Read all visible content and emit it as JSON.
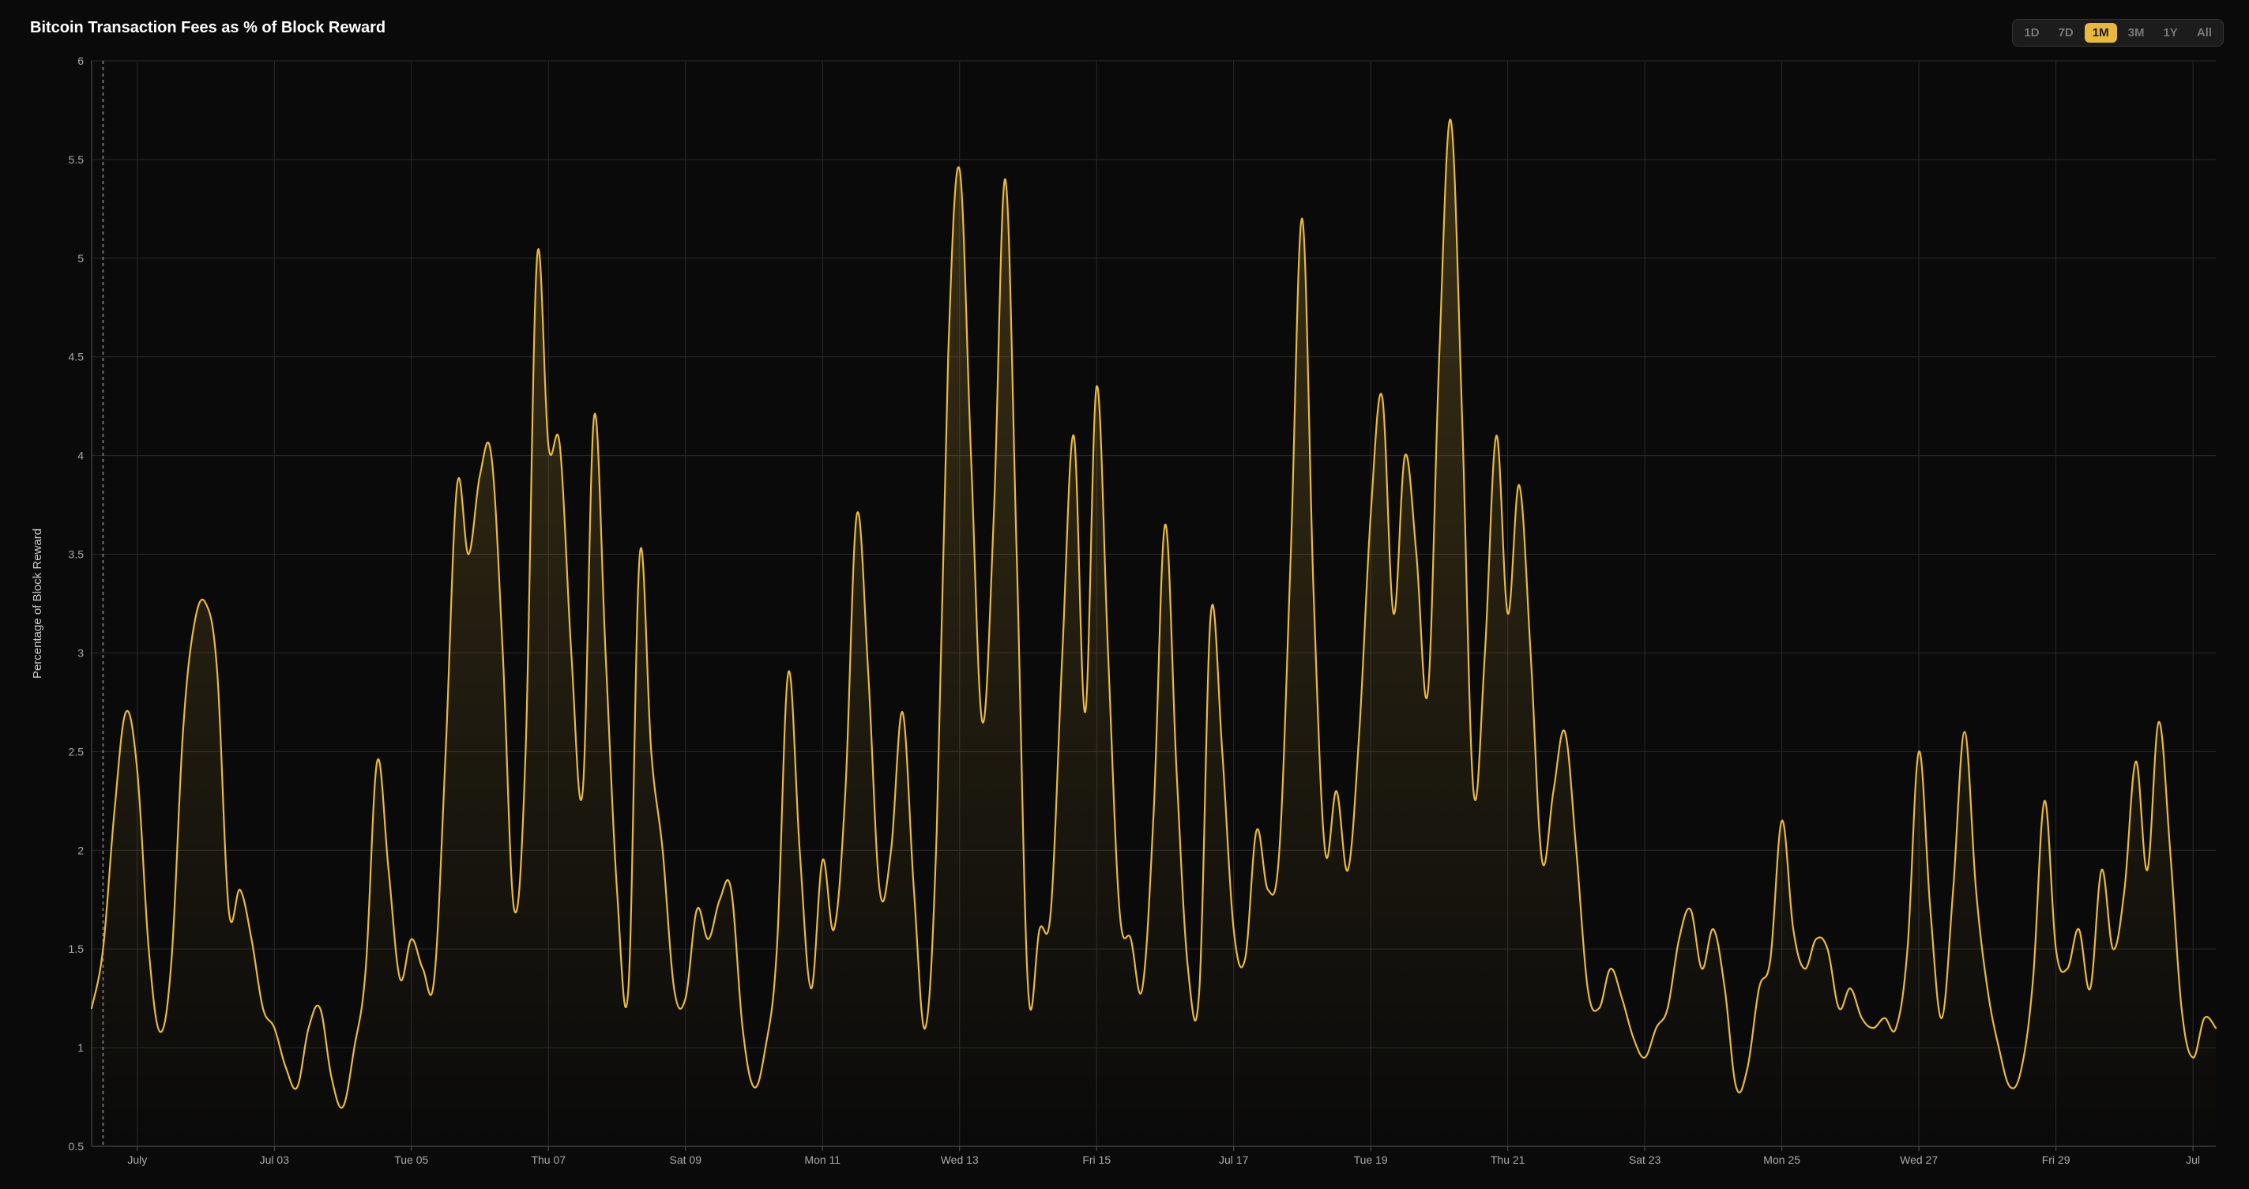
{
  "title": "Bitcoin Transaction Fees as % of Block Reward",
  "range_selector": {
    "options": [
      "1D",
      "7D",
      "1M",
      "3M",
      "1Y",
      "All"
    ],
    "selected": "1M"
  },
  "chart": {
    "type": "area",
    "background_color": "#0a0a0a",
    "grid_color": "#2a2a2a",
    "axis_color": "#555555",
    "line_color": "#e8b93f",
    "line_width": 2.2,
    "fill_top_color": "#e8b93f",
    "fill_top_opacity": 0.22,
    "fill_bottom_opacity": 0.0,
    "ylabel": "Percentage of Block Reward",
    "ylabel_fontsize": 15,
    "tick_fontsize": 14,
    "tick_color": "#aaaaaa",
    "ylim": [
      0.5,
      6
    ],
    "ytick_step": 0.5,
    "x_index_range": [
      0,
      186
    ],
    "x_ticks": [
      {
        "idx": 4,
        "label": "July"
      },
      {
        "idx": 16,
        "label": "Jul 03"
      },
      {
        "idx": 28,
        "label": "Tue 05"
      },
      {
        "idx": 40,
        "label": "Thu 07"
      },
      {
        "idx": 52,
        "label": "Sat 09"
      },
      {
        "idx": 64,
        "label": "Mon 11"
      },
      {
        "idx": 76,
        "label": "Wed 13"
      },
      {
        "idx": 88,
        "label": "Fri 15"
      },
      {
        "idx": 100,
        "label": "Jul 17"
      },
      {
        "idx": 112,
        "label": "Tue 19"
      },
      {
        "idx": 124,
        "label": "Thu 21"
      },
      {
        "idx": 136,
        "label": "Sat 23"
      },
      {
        "idx": 148,
        "label": "Mon 25"
      },
      {
        "idx": 160,
        "label": "Wed 27"
      },
      {
        "idx": 172,
        "label": "Fri 29"
      },
      {
        "idx": 184,
        "label": "Jul"
      }
    ],
    "dashed_marker_idx": 1,
    "values": [
      1.2,
      1.5,
      2.2,
      2.7,
      2.4,
      1.5,
      1.08,
      1.45,
      2.6,
      3.15,
      3.25,
      2.9,
      1.7,
      1.8,
      1.55,
      1.2,
      1.1,
      0.9,
      0.8,
      1.1,
      1.2,
      0.85,
      0.7,
      1.0,
      1.4,
      2.45,
      1.9,
      1.35,
      1.55,
      1.4,
      1.35,
      2.5,
      3.85,
      3.5,
      3.9,
      4.0,
      3.0,
      1.7,
      2.5,
      5.0,
      4.05,
      4.05,
      3.0,
      2.3,
      4.2,
      3.0,
      1.8,
      1.3,
      3.5,
      2.5,
      2.0,
      1.3,
      1.25,
      1.7,
      1.55,
      1.75,
      1.8,
      1.1,
      0.8,
      1.0,
      1.5,
      2.9,
      2.0,
      1.3,
      1.95,
      1.6,
      2.3,
      3.7,
      2.9,
      1.8,
      2.0,
      2.7,
      1.8,
      1.1,
      2.1,
      4.5,
      5.45,
      4.0,
      2.65,
      3.7,
      5.4,
      3.5,
      1.3,
      1.6,
      1.7,
      3.0,
      4.1,
      2.7,
      4.35,
      3.0,
      1.7,
      1.55,
      1.3,
      2.2,
      3.65,
      2.4,
      1.4,
      1.3,
      3.2,
      2.5,
      1.6,
      1.45,
      2.1,
      1.8,
      2.0,
      3.5,
      5.2,
      3.3,
      2.0,
      2.3,
      1.9,
      2.6,
      3.7,
      4.3,
      3.2,
      4.0,
      3.5,
      2.8,
      4.5,
      5.7,
      4.2,
      2.3,
      3.0,
      4.1,
      3.2,
      3.85,
      3.0,
      1.95,
      2.3,
      2.6,
      2.0,
      1.3,
      1.2,
      1.4,
      1.25,
      1.05,
      0.95,
      1.1,
      1.2,
      1.55,
      1.7,
      1.4,
      1.6,
      1.3,
      0.8,
      0.9,
      1.3,
      1.45,
      2.15,
      1.6,
      1.4,
      1.55,
      1.5,
      1.2,
      1.3,
      1.15,
      1.1,
      1.15,
      1.1,
      1.5,
      2.5,
      1.7,
      1.15,
      1.8,
      2.6,
      1.8,
      1.3,
      1.0,
      0.8,
      0.9,
      1.35,
      2.25,
      1.5,
      1.4,
      1.6,
      1.3,
      1.9,
      1.5,
      1.8,
      2.45,
      1.9,
      2.65,
      2.0,
      1.2,
      0.95,
      1.15,
      1.1
    ]
  }
}
